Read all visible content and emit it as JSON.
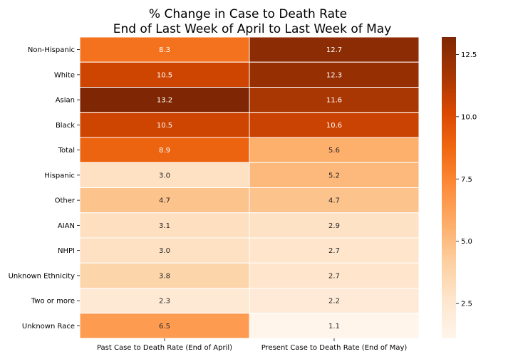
{
  "chart_data": {
    "type": "heatmap",
    "title": [
      "% Change in Case to Death Rate",
      "End of Last Week of April to Last Week of May"
    ],
    "rows": [
      "Non-Hispanic",
      "White",
      "Asian",
      "Black",
      "Total",
      "Hispanic",
      "Other",
      "AIAN",
      "NHPI",
      "Unknown Ethnicity",
      "Two or more",
      "Unknown Race"
    ],
    "columns": [
      "Past Case to Death Rate (End of April)",
      "Present Case to Death Rate (End of May)"
    ],
    "values": [
      [
        8.3,
        12.7
      ],
      [
        10.5,
        12.3
      ],
      [
        13.2,
        11.6
      ],
      [
        10.5,
        10.6
      ],
      [
        8.9,
        5.6
      ],
      [
        3.0,
        5.2
      ],
      [
        4.7,
        4.7
      ],
      [
        3.1,
        2.9
      ],
      [
        3.0,
        2.7
      ],
      [
        3.8,
        2.7
      ],
      [
        2.3,
        2.2
      ],
      [
        6.5,
        1.1
      ]
    ],
    "labels": [
      [
        "8.3",
        "12.7"
      ],
      [
        "10.5",
        "12.3"
      ],
      [
        "13.2",
        "11.6"
      ],
      [
        "10.5",
        "10.6"
      ],
      [
        "8.9",
        "5.6"
      ],
      [
        "3.0",
        "5.2"
      ],
      [
        "4.7",
        "4.7"
      ],
      [
        "3.1",
        "2.9"
      ],
      [
        "3.0",
        "2.7"
      ],
      [
        "3.8",
        "2.7"
      ],
      [
        "2.3",
        "2.2"
      ],
      [
        "6.5",
        "1.1"
      ]
    ],
    "color_range": [
      1.1,
      13.2
    ],
    "colormap": "Oranges",
    "colorbar_ticks": [
      2.5,
      5.0,
      7.5,
      10.0,
      12.5
    ],
    "colorbar_tick_labels": [
      "2.5",
      "5.0",
      "7.5",
      "10.0",
      "12.5"
    ]
  }
}
